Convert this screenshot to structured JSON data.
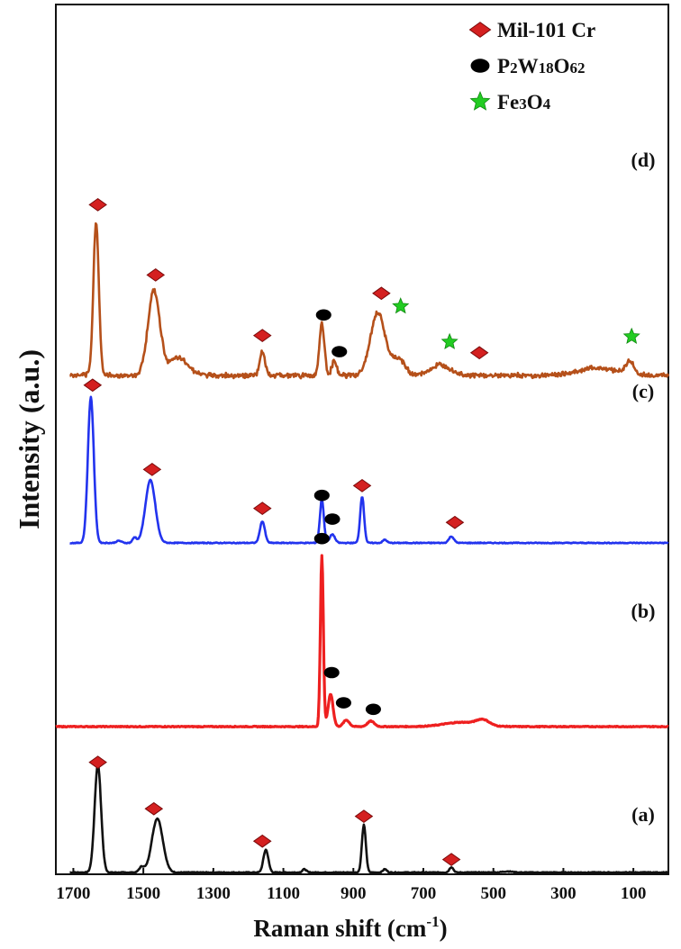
{
  "chart_data": {
    "type": "line",
    "xlabel": "Raman shift (cm",
    "xlabel_sup": "-1",
    "xlabel_close": ")",
    "ylabel": "Intensity (a.u.)",
    "xlim": [
      1750,
      0
    ],
    "xticks": [
      1700,
      1500,
      1300,
      1100,
      900,
      700,
      500,
      300,
      100
    ],
    "grid": false,
    "legend_position": "top-right",
    "legend": [
      {
        "label": "Mil-101 Cr",
        "marker": "diamond",
        "color": "#d42020"
      },
      {
        "label_parts": [
          [
            "P",
            0
          ],
          [
            "2",
            1
          ],
          [
            "W",
            0
          ],
          [
            "18",
            1
          ],
          [
            "O",
            0
          ],
          [
            "62",
            1
          ]
        ],
        "label": "P2W18O62",
        "marker": "circle",
        "color": "#000000"
      },
      {
        "label_parts": [
          [
            "Fe",
            0
          ],
          [
            "3",
            1
          ],
          [
            "O",
            0
          ],
          [
            "4",
            1
          ]
        ],
        "label": "Fe3O4",
        "marker": "star",
        "color": "#22cc22"
      }
    ],
    "series": [
      {
        "name": "(a)",
        "color": "#111111",
        "offset": 0,
        "baseline": 0.5,
        "peaks": [
          [
            1630,
            13,
            1.0
          ],
          [
            1460,
            22,
            0.5
          ],
          [
            1505,
            10,
            0.05
          ],
          [
            1150,
            10,
            0.21
          ],
          [
            1040,
            8,
            0.03
          ],
          [
            870,
            8,
            0.44
          ],
          [
            810,
            8,
            0.03
          ],
          [
            620,
            8,
            0.05
          ],
          [
            460,
            20,
            0.01
          ]
        ],
        "markers": [
          {
            "x": 1630,
            "y": 1.02,
            "type": "diamond"
          },
          {
            "x": 1470,
            "y": 0.59,
            "type": "diamond"
          },
          {
            "x": 1160,
            "y": 0.29,
            "type": "diamond"
          },
          {
            "x": 870,
            "y": 0.52,
            "type": "diamond"
          },
          {
            "x": 620,
            "y": 0.12,
            "type": "diamond"
          }
        ]
      },
      {
        "name": "(b)",
        "color": "#ee2020",
        "offset": 1.35,
        "baseline": 0.0,
        "peaks": [
          [
            990,
            6,
            1.58
          ],
          [
            965,
            10,
            0.3
          ],
          [
            920,
            12,
            0.06
          ],
          [
            850,
            14,
            0.05
          ],
          [
            590,
            70,
            0.04
          ],
          [
            530,
            25,
            0.05
          ]
        ],
        "markers": [
          {
            "x": 990,
            "y": 1.74,
            "type": "circle"
          },
          {
            "x": 962,
            "y": 0.5,
            "type": "circle"
          },
          {
            "x": 928,
            "y": 0.22,
            "type": "circle"
          },
          {
            "x": 843,
            "y": 0.16,
            "type": "circle"
          }
        ]
      },
      {
        "name": "(c)",
        "color": "#2233ee",
        "offset": 3.05,
        "baseline": 0.2,
        "peaks": [
          [
            1650,
            12,
            1.35
          ],
          [
            1480,
            20,
            0.58
          ],
          [
            1525,
            8,
            0.05
          ],
          [
            1160,
            10,
            0.2
          ],
          [
            990,
            8,
            0.4
          ],
          [
            960,
            10,
            0.08
          ],
          [
            875,
            8,
            0.43
          ],
          [
            810,
            8,
            0.03
          ],
          [
            620,
            10,
            0.06
          ],
          [
            1570,
            10,
            0.02
          ]
        ],
        "markers": [
          {
            "x": 1645,
            "y": 1.46,
            "type": "diamond"
          },
          {
            "x": 1475,
            "y": 0.68,
            "type": "diamond"
          },
          {
            "x": 1160,
            "y": 0.32,
            "type": "diamond"
          },
          {
            "x": 990,
            "y": 0.44,
            "type": "circle"
          },
          {
            "x": 960,
            "y": 0.22,
            "type": "circle"
          },
          {
            "x": 875,
            "y": 0.53,
            "type": "diamond"
          },
          {
            "x": 610,
            "y": 0.19,
            "type": "diamond"
          }
        ]
      },
      {
        "name": "(d)",
        "color": "#b5501a",
        "offset": 4.6,
        "baseline": 0.2,
        "peaks": [
          [
            1635,
            11,
            1.42
          ],
          [
            1470,
            24,
            0.78
          ],
          [
            1400,
            40,
            0.16
          ],
          [
            1160,
            10,
            0.23
          ],
          [
            990,
            10,
            0.48
          ],
          [
            955,
            10,
            0.13
          ],
          [
            830,
            30,
            0.58
          ],
          [
            770,
            25,
            0.15
          ],
          [
            650,
            40,
            0.1
          ],
          [
            110,
            15,
            0.12
          ],
          [
            200,
            80,
            0.07
          ]
        ],
        "noise": 0.03,
        "markers": [
          {
            "x": 1630,
            "y": 1.58,
            "type": "diamond"
          },
          {
            "x": 1465,
            "y": 0.93,
            "type": "diamond"
          },
          {
            "x": 1160,
            "y": 0.37,
            "type": "diamond"
          },
          {
            "x": 985,
            "y": 0.56,
            "type": "circle"
          },
          {
            "x": 940,
            "y": 0.22,
            "type": "circle"
          },
          {
            "x": 820,
            "y": 0.76,
            "type": "diamond"
          },
          {
            "x": 765,
            "y": 0.64,
            "type": "star"
          },
          {
            "x": 625,
            "y": 0.31,
            "type": "star"
          },
          {
            "x": 540,
            "y": 0.21,
            "type": "diamond"
          },
          {
            "x": 105,
            "y": 0.36,
            "type": "star"
          }
        ]
      }
    ]
  }
}
